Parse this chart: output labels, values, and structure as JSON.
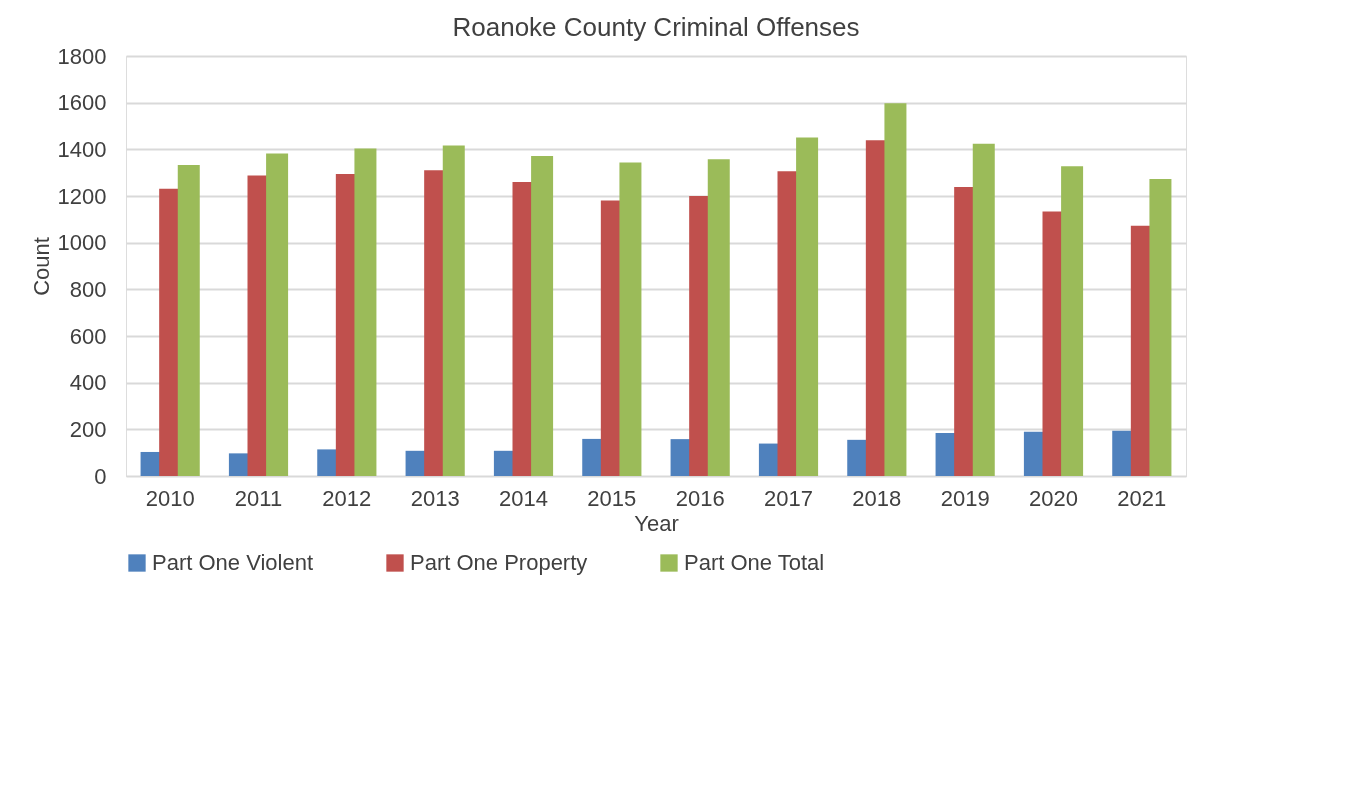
{
  "chart_data": {
    "type": "bar",
    "title": "Roanoke County Criminal Offenses",
    "xlabel": "Year",
    "ylabel": "Count",
    "categories": [
      "2010",
      "2011",
      "2012",
      "2013",
      "2014",
      "2015",
      "2016",
      "2017",
      "2018",
      "2019",
      "2020",
      "2021"
    ],
    "series": [
      {
        "name": "Part One Violent",
        "color": "#4f81bd",
        "values": [
          103,
          97,
          114,
          108,
          108,
          159,
          158,
          139,
          155,
          184,
          190,
          194
        ]
      },
      {
        "name": "Part One Property",
        "color": "#c0504d",
        "values": [
          1231,
          1288,
          1294,
          1310,
          1260,
          1181,
          1200,
          1306,
          1439,
          1239,
          1134,
          1073
        ]
      },
      {
        "name": "Part One Total",
        "color": "#9bbb59",
        "values": [
          1333,
          1382,
          1404,
          1416,
          1371,
          1344,
          1357,
          1451,
          1597,
          1424,
          1328,
          1273
        ]
      }
    ],
    "ylim": [
      0,
      1800
    ],
    "yticks": [
      0,
      200,
      400,
      600,
      800,
      1000,
      1200,
      1400,
      1600,
      1800
    ],
    "grid": "y",
    "legend": "bottom"
  }
}
